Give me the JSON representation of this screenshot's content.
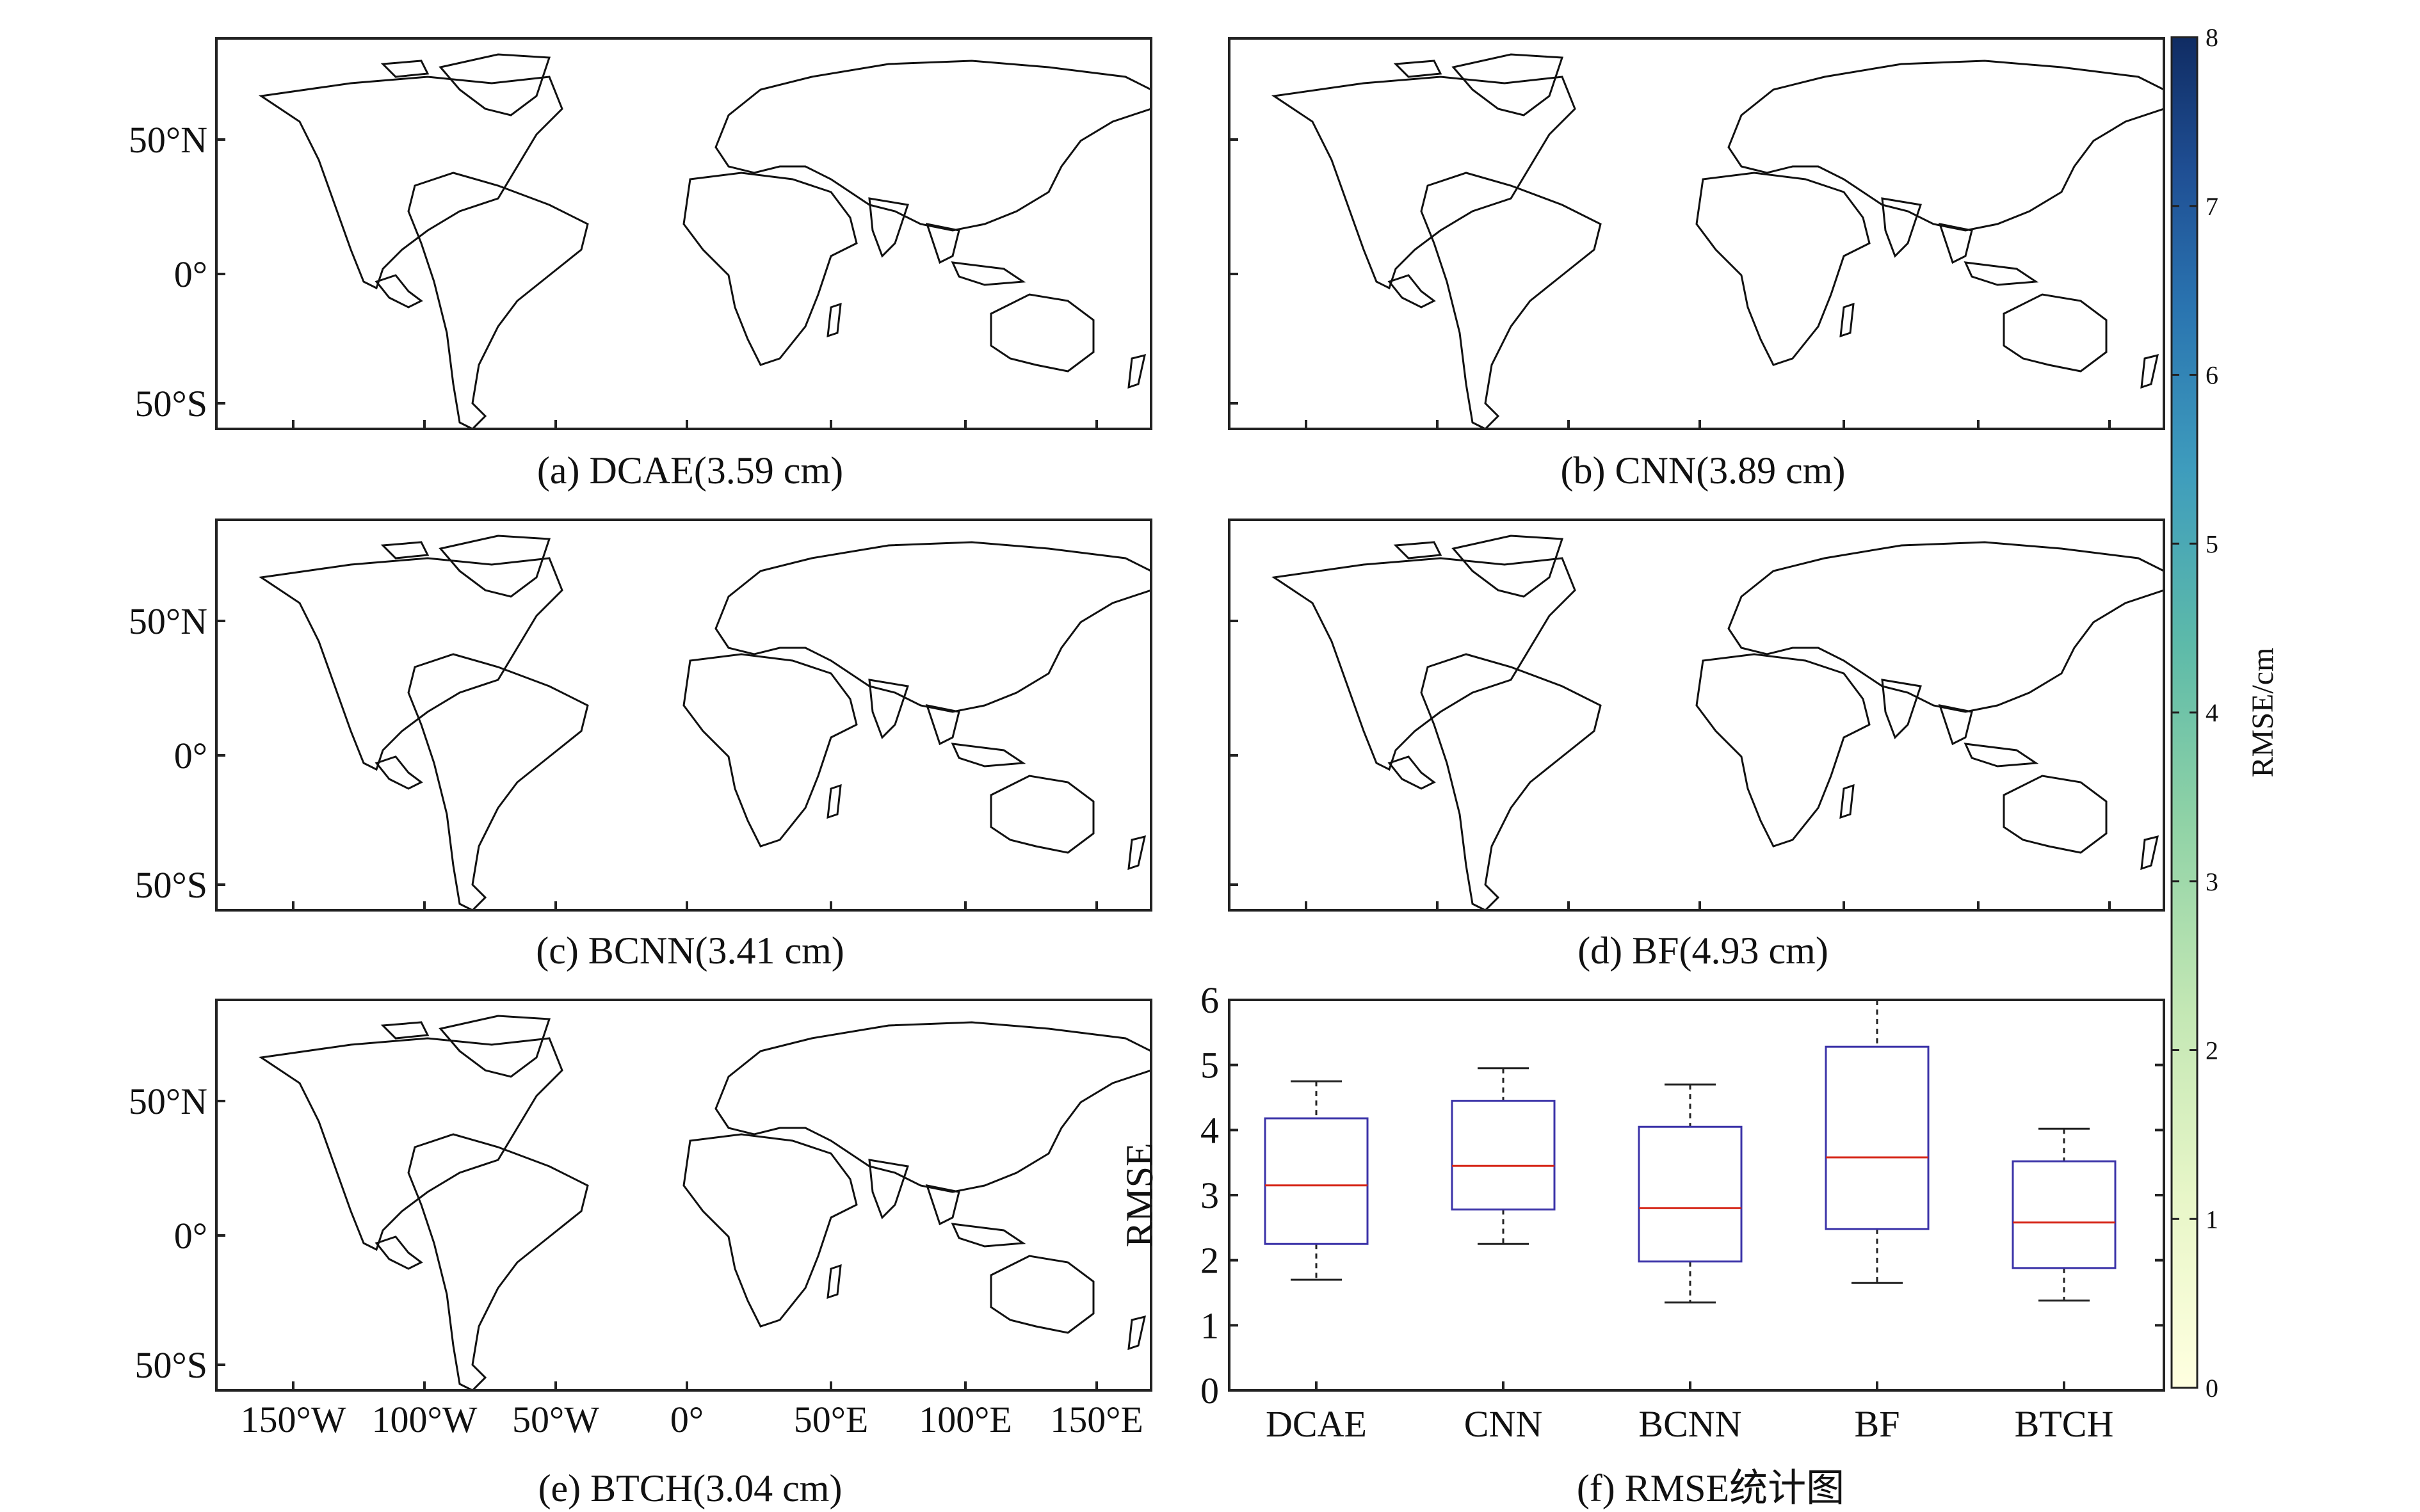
{
  "colorbar": {
    "label": "RMSE/cm",
    "ticks": [
      "0",
      "1",
      "2",
      "3",
      "4",
      "5",
      "6",
      "7",
      "8"
    ],
    "min": 0,
    "max": 8,
    "colors": [
      "#ffffe0",
      "#d4efbe",
      "#9bd7a8",
      "#64c2a2",
      "#45a5bd",
      "#2d7db4",
      "#1d4e93",
      "#0f2f66"
    ]
  },
  "map_axes": {
    "lat_ticks": [
      "50°N",
      "0°",
      "50°S"
    ],
    "lon_ticks": [
      "150°W",
      "100°W",
      "50°W",
      "0°",
      "50°E",
      "100°E",
      "150°E"
    ],
    "land_base_color": "#cfeec6",
    "coast_color": "#111111"
  },
  "maps": [
    {
      "id": "a",
      "caption": "(a) DCAE(3.59 cm)"
    },
    {
      "id": "b",
      "caption": "(b) CNN(3.89 cm)"
    },
    {
      "id": "c",
      "caption": "(c) BCNN(3.41 cm)"
    },
    {
      "id": "d",
      "caption": "(d) BF(4.93 cm)"
    },
    {
      "id": "e",
      "caption": "(e) BTCH(3.04 cm)"
    }
  ],
  "chart_data": {
    "type": "box",
    "caption": "(f) RMSE统计图",
    "ylabel": "RMSE",
    "ylim": [
      0,
      6
    ],
    "yticks": [
      0,
      1,
      2,
      3,
      4,
      5,
      6
    ],
    "categories": [
      "DCAE",
      "CNN",
      "BCNN",
      "BF",
      "BTCH"
    ],
    "boxes": [
      {
        "category": "DCAE",
        "whisker_low": 1.7,
        "q1": 2.25,
        "median": 3.15,
        "q3": 4.18,
        "whisker_high": 4.75
      },
      {
        "category": "CNN",
        "whisker_low": 2.25,
        "q1": 2.78,
        "median": 3.45,
        "q3": 4.45,
        "whisker_high": 4.95
      },
      {
        "category": "BCNN",
        "whisker_low": 1.35,
        "q1": 1.98,
        "median": 2.8,
        "q3": 4.05,
        "whisker_high": 4.7
      },
      {
        "category": "BF",
        "whisker_low": 1.65,
        "q1": 2.48,
        "median": 3.58,
        "q3": 5.28,
        "whisker_high": 6.0
      },
      {
        "category": "BTCH",
        "whisker_low": 1.38,
        "q1": 1.88,
        "median": 2.58,
        "q3": 3.52,
        "whisker_high": 4.02
      }
    ],
    "box_color": "#3b33a8",
    "median_color": "#d62718"
  }
}
